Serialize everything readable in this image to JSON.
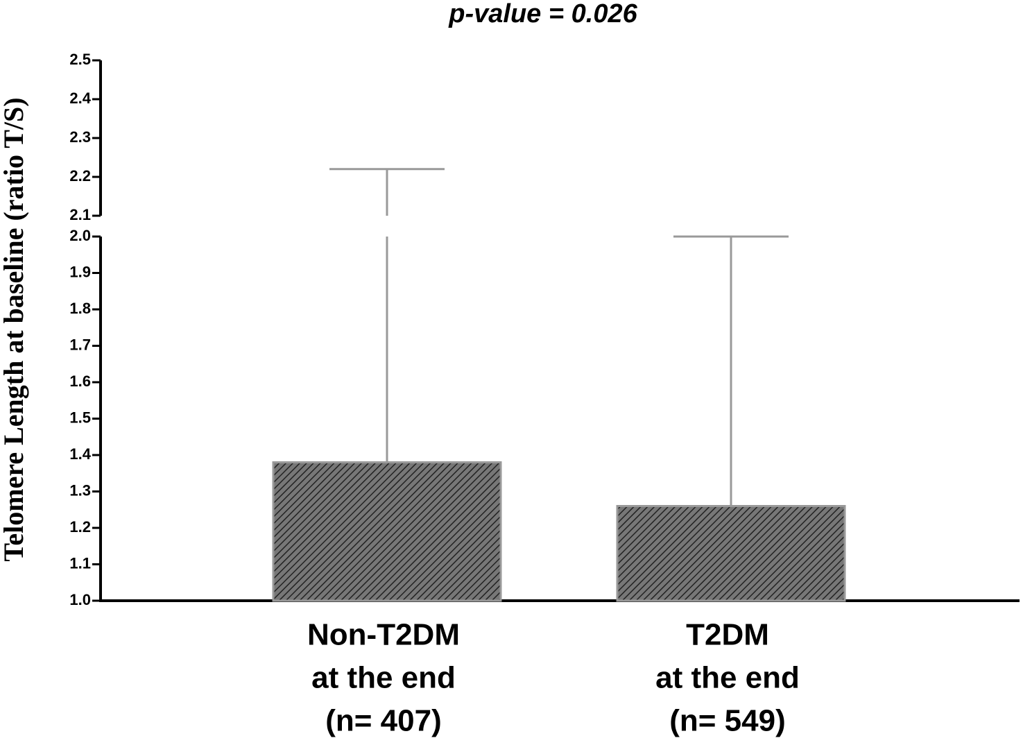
{
  "chart_data": {
    "type": "bar",
    "title": "p-value = 0.026",
    "y_label": "Telomere Length at baseline (ratio T/S)",
    "categories": [
      [
        "Non-T2DM",
        "at the end",
        "(n= 407)"
      ],
      [
        "T2DM",
        "at the end",
        "(n= 549)"
      ]
    ],
    "values": [
      1.38,
      1.26
    ],
    "errors": [
      0.84,
      0.74
    ],
    "color": "#555555",
    "error_color": "#999999",
    "y_segments": [
      {
        "ylim": [
          1.0,
          2.0
        ],
        "yticks": [
          {
            "value": 1.0,
            "label": "1.0"
          },
          1.1,
          1.2,
          1.3,
          1.4,
          1.5,
          1.6,
          1.7,
          1.8,
          1.9,
          {
            "value": 2.0,
            "label": "2.0"
          }
        ]
      },
      {
        "ylim": [
          2.1,
          2.5
        ],
        "yticks": [
          2.1,
          2.2,
          2.3,
          2.4,
          2.5
        ]
      }
    ]
  }
}
